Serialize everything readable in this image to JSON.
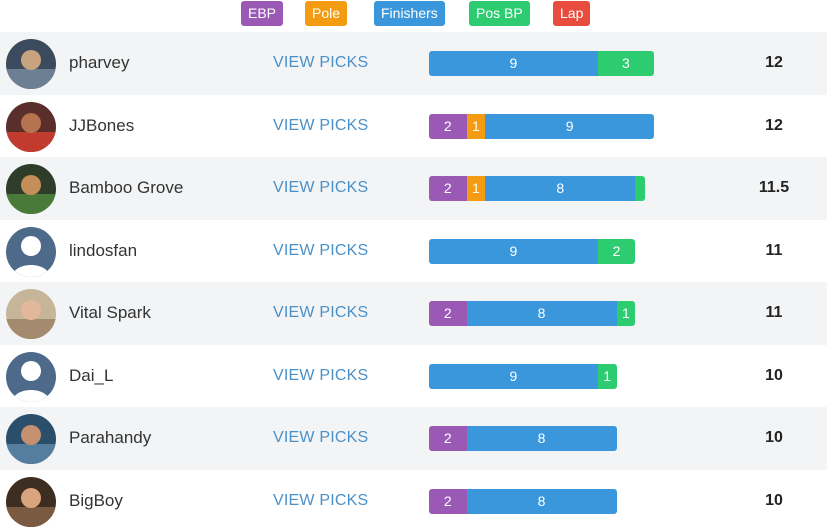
{
  "legend": [
    {
      "key": "ebp",
      "label": "EBP",
      "color": "#9b59b6"
    },
    {
      "key": "pole",
      "label": "Pole",
      "color": "#f39c12"
    },
    {
      "key": "fin",
      "label": "Finishers",
      "color": "#3a97db"
    },
    {
      "key": "posbp",
      "label": "Pos BP",
      "color": "#2ecc71"
    },
    {
      "key": "lap",
      "label": "Lap",
      "color": "#e74c3c"
    }
  ],
  "view_picks_label": "VIEW PICKS",
  "rows": [
    {
      "name": "pharvey",
      "total": "12",
      "avatar": "photo",
      "segments": [
        {
          "type": "fin",
          "value": 9,
          "label": "9"
        },
        {
          "type": "posbp",
          "value": 3,
          "label": "3"
        }
      ]
    },
    {
      "name": "JJBones",
      "total": "12",
      "avatar": "photo",
      "segments": [
        {
          "type": "ebp",
          "value": 2,
          "label": "2"
        },
        {
          "type": "pole",
          "value": 1,
          "label": "1"
        },
        {
          "type": "fin",
          "value": 9,
          "label": "9"
        }
      ]
    },
    {
      "name": "Bamboo Grove",
      "total": "11.5",
      "avatar": "photo",
      "segments": [
        {
          "type": "ebp",
          "value": 2,
          "label": "2"
        },
        {
          "type": "pole",
          "value": 1,
          "label": "1"
        },
        {
          "type": "fin",
          "value": 8,
          "label": "8"
        },
        {
          "type": "posbp",
          "value": 0.5,
          "label": ""
        }
      ]
    },
    {
      "name": "lindosfan",
      "total": "11",
      "avatar": "default",
      "segments": [
        {
          "type": "fin",
          "value": 9,
          "label": "9"
        },
        {
          "type": "posbp",
          "value": 2,
          "label": "2"
        }
      ]
    },
    {
      "name": "Vital Spark",
      "total": "11",
      "avatar": "photo",
      "segments": [
        {
          "type": "ebp",
          "value": 2,
          "label": "2"
        },
        {
          "type": "fin",
          "value": 8,
          "label": "8"
        },
        {
          "type": "posbp",
          "value": 1,
          "label": "1"
        }
      ]
    },
    {
      "name": "Dai_L",
      "total": "10",
      "avatar": "default",
      "segments": [
        {
          "type": "fin",
          "value": 9,
          "label": "9"
        },
        {
          "type": "posbp",
          "value": 1,
          "label": "1"
        }
      ]
    },
    {
      "name": "Parahandy",
      "total": "10",
      "avatar": "photo",
      "segments": [
        {
          "type": "ebp",
          "value": 2,
          "label": "2"
        },
        {
          "type": "fin",
          "value": 8,
          "label": "8"
        }
      ]
    },
    {
      "name": "BigBoy",
      "total": "10",
      "avatar": "photo",
      "segments": [
        {
          "type": "ebp",
          "value": 2,
          "label": "2"
        },
        {
          "type": "fin",
          "value": 8,
          "label": "8"
        }
      ]
    }
  ]
}
